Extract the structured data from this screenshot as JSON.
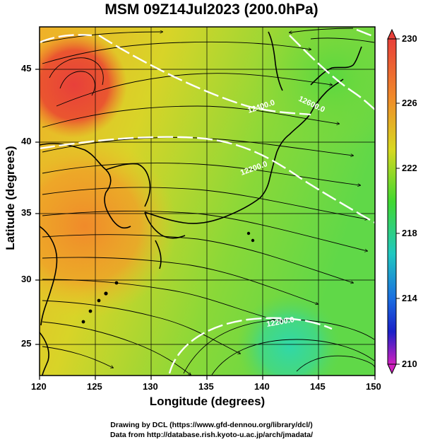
{
  "title": "MSM 09Z14Jul2023 (200.0hPa)",
  "x_axis": {
    "label": "Longitude (degrees)",
    "ticks": [
      "120",
      "125",
      "130",
      "135",
      "140",
      "145",
      "150"
    ]
  },
  "y_axis": {
    "label": "Latitude  (degrees)",
    "ticks": [
      "25",
      "30",
      "35",
      "40",
      "45"
    ]
  },
  "colorbar": {
    "ticks": [
      "230",
      "226",
      "222",
      "218",
      "214",
      "210"
    ],
    "colors": [
      "#e8403a",
      "#f08a2a",
      "#d8d820",
      "#40d830",
      "#20c8c0",
      "#1a6de0",
      "#1a20c8",
      "#d020c0"
    ]
  },
  "contours": [
    {
      "label": "12200.0"
    },
    {
      "label": "12400.0"
    },
    {
      "label": "12600.0"
    },
    {
      "label": "12200.0"
    }
  ],
  "credits": {
    "line1": "Drawing by DCL (https://www.gfd-dennou.org/library/dcl/)",
    "line2": "Data from http://database.rish.kyoto-u.ac.jp/arch/jmadata/"
  }
}
